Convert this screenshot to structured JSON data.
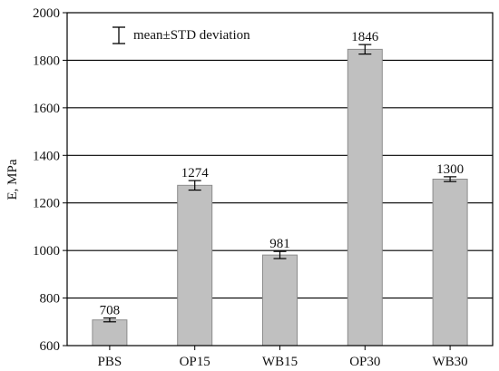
{
  "colors": {
    "bar_fill": "#c0c0c0",
    "bar_stroke": "#8c8c8c",
    "axis": "#000000",
    "grid": "#000000"
  },
  "chart_data": {
    "type": "bar",
    "title": "",
    "xlabel": "",
    "ylabel": "E, MPa",
    "categories": [
      "PBS",
      "OP15",
      "WB15",
      "OP30",
      "WB30"
    ],
    "values": [
      708,
      1274,
      981,
      1846,
      1300
    ],
    "data_labels": [
      "708",
      "1274",
      "981",
      "1846",
      "1300"
    ],
    "std": [
      8,
      20,
      15,
      20,
      10
    ],
    "ylim": [
      600,
      2000
    ],
    "yticks": [
      600,
      800,
      1000,
      1200,
      1400,
      1600,
      1800,
      2000
    ],
    "ytick_labels": [
      "600",
      "800",
      "1000",
      "1200",
      "1400",
      "1600",
      "1800",
      "2000"
    ],
    "grid": true,
    "grid_axis": "y",
    "legend": {
      "text": "mean±STD deviation",
      "icon": "error-bar-icon",
      "placement": "top-left"
    }
  }
}
